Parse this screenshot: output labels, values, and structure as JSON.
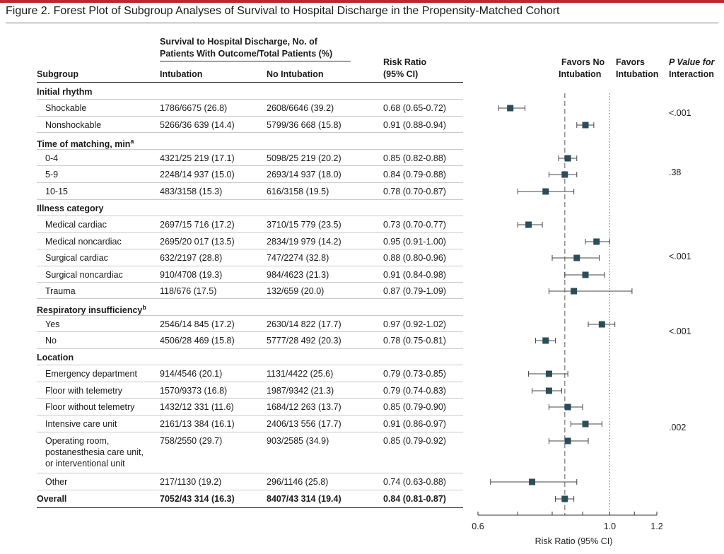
{
  "accent_color": "#c0272d",
  "marker_color": "#2b4d5a",
  "figure_title": "Figure 2. Forest Plot of Subgroup Analyses of Survival to Hospital Discharge in the Propensity-Matched Cohort",
  "headers": {
    "subgroup": "Subgroup",
    "outcome_group_line1": "Survival to Hospital Discharge, No. of",
    "outcome_group_line2": "Patients With Outcome/Total Patients (%)",
    "intubation": "Intubation",
    "no_intubation": "No Intubation",
    "risk_ratio_line1": "Risk Ratio",
    "risk_ratio_line2": "(95% CI)",
    "favors_no_line1": "Favors No",
    "favors_no_line2": "Intubation",
    "favors_int_line1": "Favors",
    "favors_int_line2": "Intubation",
    "pvalue_line1": "P Value for",
    "pvalue_line2": "Interaction"
  },
  "chart_data": {
    "type": "forest",
    "xlabel": "Risk Ratio (95% CI)",
    "x_scale": "log",
    "xlim": [
      0.6,
      1.2
    ],
    "xticks": [
      "0.6",
      "1.0",
      "1.2"
    ],
    "reference_line": 1.0,
    "overall_line": 0.84,
    "rows": [
      {
        "label": "Initial rhythm",
        "header": true
      },
      {
        "label": "Shockable",
        "intubation": "1786/6675 (26.8)",
        "no_intubation": "2608/6646 (39.2)",
        "rr_text": "0.68 (0.65-0.72)",
        "rr": 0.68,
        "lo": 0.65,
        "hi": 0.72
      },
      {
        "label": "Nonshockable",
        "intubation": "5266/36 639 (14.4)",
        "no_intubation": "5799/36 668 (15.8)",
        "rr_text": "0.91 (0.88-0.94)",
        "rr": 0.91,
        "lo": 0.88,
        "hi": 0.94
      },
      {
        "label": "Time of matching, min",
        "label_sup": "a",
        "header": true
      },
      {
        "label": "0-4",
        "intubation": "4321/25 219 (17.1)",
        "no_intubation": "5098/25 219 (20.2)",
        "rr_text": "0.85 (0.82-0.88)",
        "rr": 0.85,
        "lo": 0.82,
        "hi": 0.88
      },
      {
        "label": "5-9",
        "intubation": "2248/14 937 (15.0)",
        "no_intubation": "2693/14 937 (18.0)",
        "rr_text": "0.84 (0.79-0.88)",
        "rr": 0.84,
        "lo": 0.79,
        "hi": 0.88
      },
      {
        "label": "10-15",
        "intubation": "483/3158 (15.3)",
        "no_intubation": "616/3158 (19.5)",
        "rr_text": "0.78 (0.70-0.87)",
        "rr": 0.78,
        "lo": 0.7,
        "hi": 0.87
      },
      {
        "label": "Illness category",
        "header": true
      },
      {
        "label": "Medical cardiac",
        "intubation": "2697/15 716 (17.2)",
        "no_intubation": "3710/15 779 (23.5)",
        "rr_text": "0.73 (0.70-0.77)",
        "rr": 0.73,
        "lo": 0.7,
        "hi": 0.77
      },
      {
        "label": "Medical noncardiac",
        "intubation": "2695/20 017 (13.5)",
        "no_intubation": "2834/19 979 (14.2)",
        "rr_text": "0.95 (0.91-1.00)",
        "rr": 0.95,
        "lo": 0.91,
        "hi": 1.0
      },
      {
        "label": "Surgical cardiac",
        "intubation": "632/2197 (28.8)",
        "no_intubation": "747/2274 (32.8)",
        "rr_text": "0.88 (0.80-0.96)",
        "rr": 0.88,
        "lo": 0.8,
        "hi": 0.96
      },
      {
        "label": "Surgical noncardiac",
        "intubation": "910/4708 (19.3)",
        "no_intubation": "984/4623 (21.3)",
        "rr_text": "0.91 (0.84-0.98)",
        "rr": 0.91,
        "lo": 0.84,
        "hi": 0.98
      },
      {
        "label": "Trauma",
        "intubation": "118/676 (17.5)",
        "no_intubation": "132/659 (20.0)",
        "rr_text": "0.87 (0.79-1.09)",
        "rr": 0.87,
        "lo": 0.79,
        "hi": 1.09
      },
      {
        "label": "Respiratory insufficiency",
        "label_sup": "b",
        "header": true
      },
      {
        "label": "Yes",
        "intubation": "2546/14 845 (17.2)",
        "no_intubation": "2630/14 822 (17.7)",
        "rr_text": "0.97 (0.92-1.02)",
        "rr": 0.97,
        "lo": 0.92,
        "hi": 1.02
      },
      {
        "label": "No",
        "intubation": "4506/28 469 (15.8)",
        "no_intubation": "5777/28 492 (20.3)",
        "rr_text": "0.78 (0.75-0.81)",
        "rr": 0.78,
        "lo": 0.75,
        "hi": 0.81
      },
      {
        "label": "Location",
        "header": true
      },
      {
        "label": "Emergency department",
        "intubation": "914/4546 (20.1)",
        "no_intubation": "1131/4422 (25.6)",
        "rr_text": "0.79 (0.73-0.85)",
        "rr": 0.79,
        "lo": 0.73,
        "hi": 0.85
      },
      {
        "label": "Floor with telemetry",
        "intubation": "1570/9373 (16.8)",
        "no_intubation": "1987/9342 (21.3)",
        "rr_text": "0.79 (0.74-0.83)",
        "rr": 0.79,
        "lo": 0.74,
        "hi": 0.83
      },
      {
        "label": "Floor without telemetry",
        "intubation": "1432/12 331 (11.6)",
        "no_intubation": "1684/12 263 (13.7)",
        "rr_text": "0.85 (0.79-0.90)",
        "rr": 0.85,
        "lo": 0.79,
        "hi": 0.9
      },
      {
        "label": "Intensive care unit",
        "intubation": "2161/13 384 (16.1)",
        "no_intubation": "2406/13 556 (17.7)",
        "rr_text": "0.91 (0.86-0.97)",
        "rr": 0.91,
        "lo": 0.86,
        "hi": 0.97
      },
      {
        "label": "Operating room,\npostanesthesia care unit,\nor interventional unit",
        "intubation": "758/2550 (29.7)",
        "no_intubation": "903/2585 (34.9)",
        "rr_text": "0.85 (0.79-0.92)",
        "rr": 0.85,
        "lo": 0.79,
        "hi": 0.92
      },
      {
        "label": "Other",
        "intubation": "217/1130 (19.2)",
        "no_intubation": "296/1146 (25.8)",
        "rr_text": "0.74 (0.63-0.88)",
        "rr": 0.74,
        "lo": 0.63,
        "hi": 0.88
      },
      {
        "label": "Overall",
        "overall": true,
        "intubation": "7052/43 314 (16.3)",
        "no_intubation": "8407/43 314 (19.4)",
        "rr_text": "0.84 (0.81-0.87)",
        "rr": 0.84,
        "lo": 0.81,
        "hi": 0.87
      }
    ],
    "p_values": [
      {
        "group": "Initial rhythm",
        "value": "<.001"
      },
      {
        "group": "Time of matching, min",
        "value": ".38"
      },
      {
        "group": "Illness category",
        "value": "<.001"
      },
      {
        "group": "Respiratory insufficiency",
        "value": "<.001"
      },
      {
        "group": "Location",
        "value": ".002"
      }
    ]
  }
}
